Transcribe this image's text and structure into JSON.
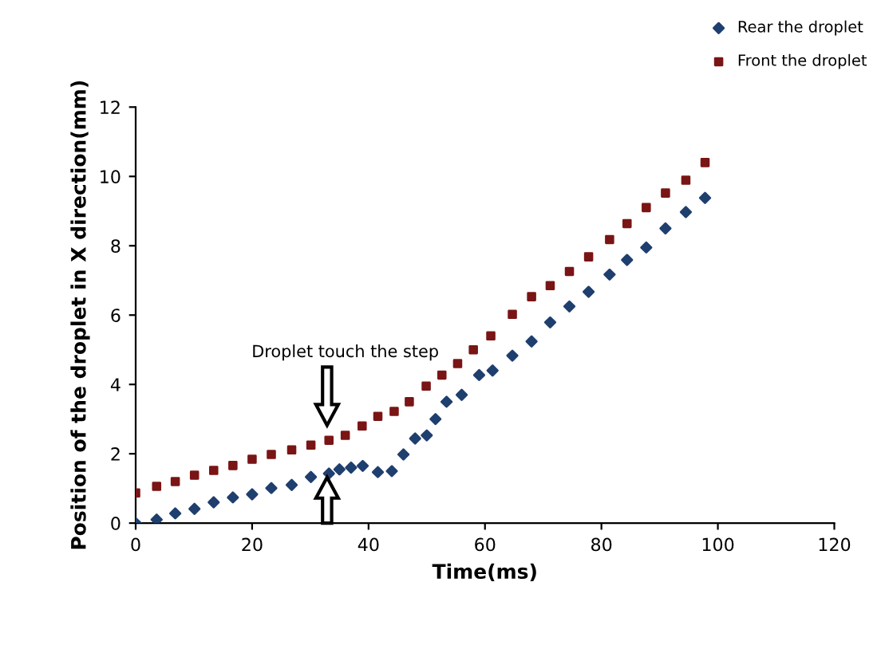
{
  "chart_data": {
    "type": "scatter",
    "xlabel": "Time(ms)",
    "ylabel": "Position of the droplet in X direction(mm)",
    "xlim": [
      0,
      120
    ],
    "xticks": [
      0,
      20,
      40,
      60,
      80,
      100,
      120
    ],
    "ylim": [
      0,
      12
    ],
    "yticks": [
      0,
      2,
      4,
      6,
      8,
      10,
      12
    ],
    "grid": false,
    "legend": "top right",
    "annotations": [
      "Droplet touch the step"
    ],
    "series": [
      {
        "name": "Rear the droplet",
        "color": "#1f3f6e",
        "marker": "diamond",
        "x": [
          0,
          3.6,
          6.8,
          10.1,
          13.4,
          16.7,
          20,
          23.3,
          26.8,
          30.1,
          33.2,
          35,
          37,
          39,
          41.6,
          44,
          46,
          48,
          50,
          51.5,
          53.4,
          56,
          59,
          61.3,
          64.7,
          68,
          71.2,
          74.5,
          77.8,
          81.4,
          84.4,
          87.7,
          91,
          94.5,
          97.8
        ],
        "values": [
          0,
          0.1,
          0.28,
          0.41,
          0.6,
          0.74,
          0.83,
          1.01,
          1.1,
          1.33,
          1.43,
          1.55,
          1.6,
          1.65,
          1.47,
          1.5,
          1.98,
          2.44,
          2.53,
          3.0,
          3.5,
          3.7,
          4.27,
          4.4,
          4.83,
          5.24,
          5.79,
          6.25,
          6.67,
          7.17,
          7.59,
          7.95,
          8.5,
          8.97,
          9.38
        ]
      },
      {
        "name": "Front the droplet",
        "color": "#7a1515",
        "marker": "square",
        "x": [
          0,
          3.6,
          6.8,
          10.1,
          13.4,
          16.7,
          20,
          23.3,
          26.8,
          30.1,
          33.2,
          36,
          38.9,
          41.6,
          44.4,
          47,
          49.9,
          52.6,
          55.3,
          58,
          61,
          64.7,
          68,
          71.2,
          74.5,
          77.8,
          81.4,
          84.4,
          87.7,
          91,
          94.5,
          97.8
        ],
        "values": [
          0.87,
          1.06,
          1.2,
          1.38,
          1.52,
          1.66,
          1.84,
          1.98,
          2.11,
          2.25,
          2.39,
          2.53,
          2.8,
          3.08,
          3.22,
          3.5,
          3.95,
          4.27,
          4.6,
          5.0,
          5.4,
          6.02,
          6.53,
          6.85,
          7.26,
          7.68,
          8.18,
          8.64,
          9.1,
          9.52,
          9.89,
          10.4
        ]
      }
    ]
  }
}
